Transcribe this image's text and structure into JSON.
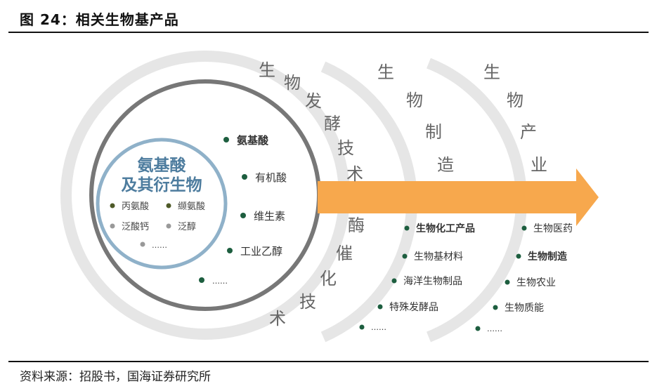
{
  "header": {
    "title": "图 24：相关生物基产品"
  },
  "footer": {
    "source": "资料来源：招股书，国海证券研究所"
  },
  "center": {
    "title_line1": "氨基酸",
    "title_line2": "及其衍生物",
    "items": [
      "丙氨酸",
      "缬氨酸",
      "泛酸钙",
      "泛醇"
    ],
    "more": "……"
  },
  "ring1": {
    "items": [
      "氨基酸",
      "有机酸",
      "维生素",
      "工业乙醇"
    ],
    "more": "……"
  },
  "ring2": {
    "vertical_top": [
      "生",
      "物",
      "发",
      "酵",
      "技",
      "术"
    ],
    "vertical_bottom": [
      "酶",
      "催",
      "化",
      "技",
      "术"
    ],
    "items": [
      "生物化工产品",
      "生物基材料",
      "海洋生物制品",
      "特殊发酵品"
    ],
    "more": "……"
  },
  "ring3": {
    "vertical_top": [
      "生",
      "物",
      "制",
      "造"
    ],
    "items": [
      "生物医药",
      "生物制造",
      "生物农业",
      "生物质能"
    ],
    "more": "……"
  },
  "ring4": {
    "vertical_top": [
      "生",
      "物",
      "产",
      "业"
    ]
  },
  "colors": {
    "arrow": "#F7A84D",
    "ring": "#E6E6E6",
    "inner_circle": "#777777",
    "core_border": "#8FB1C9",
    "core_text": "#4D7C9E",
    "dot_green": "#1D5E3F",
    "dot_olive": "#4E5A28",
    "dot_grey": "#999999"
  }
}
